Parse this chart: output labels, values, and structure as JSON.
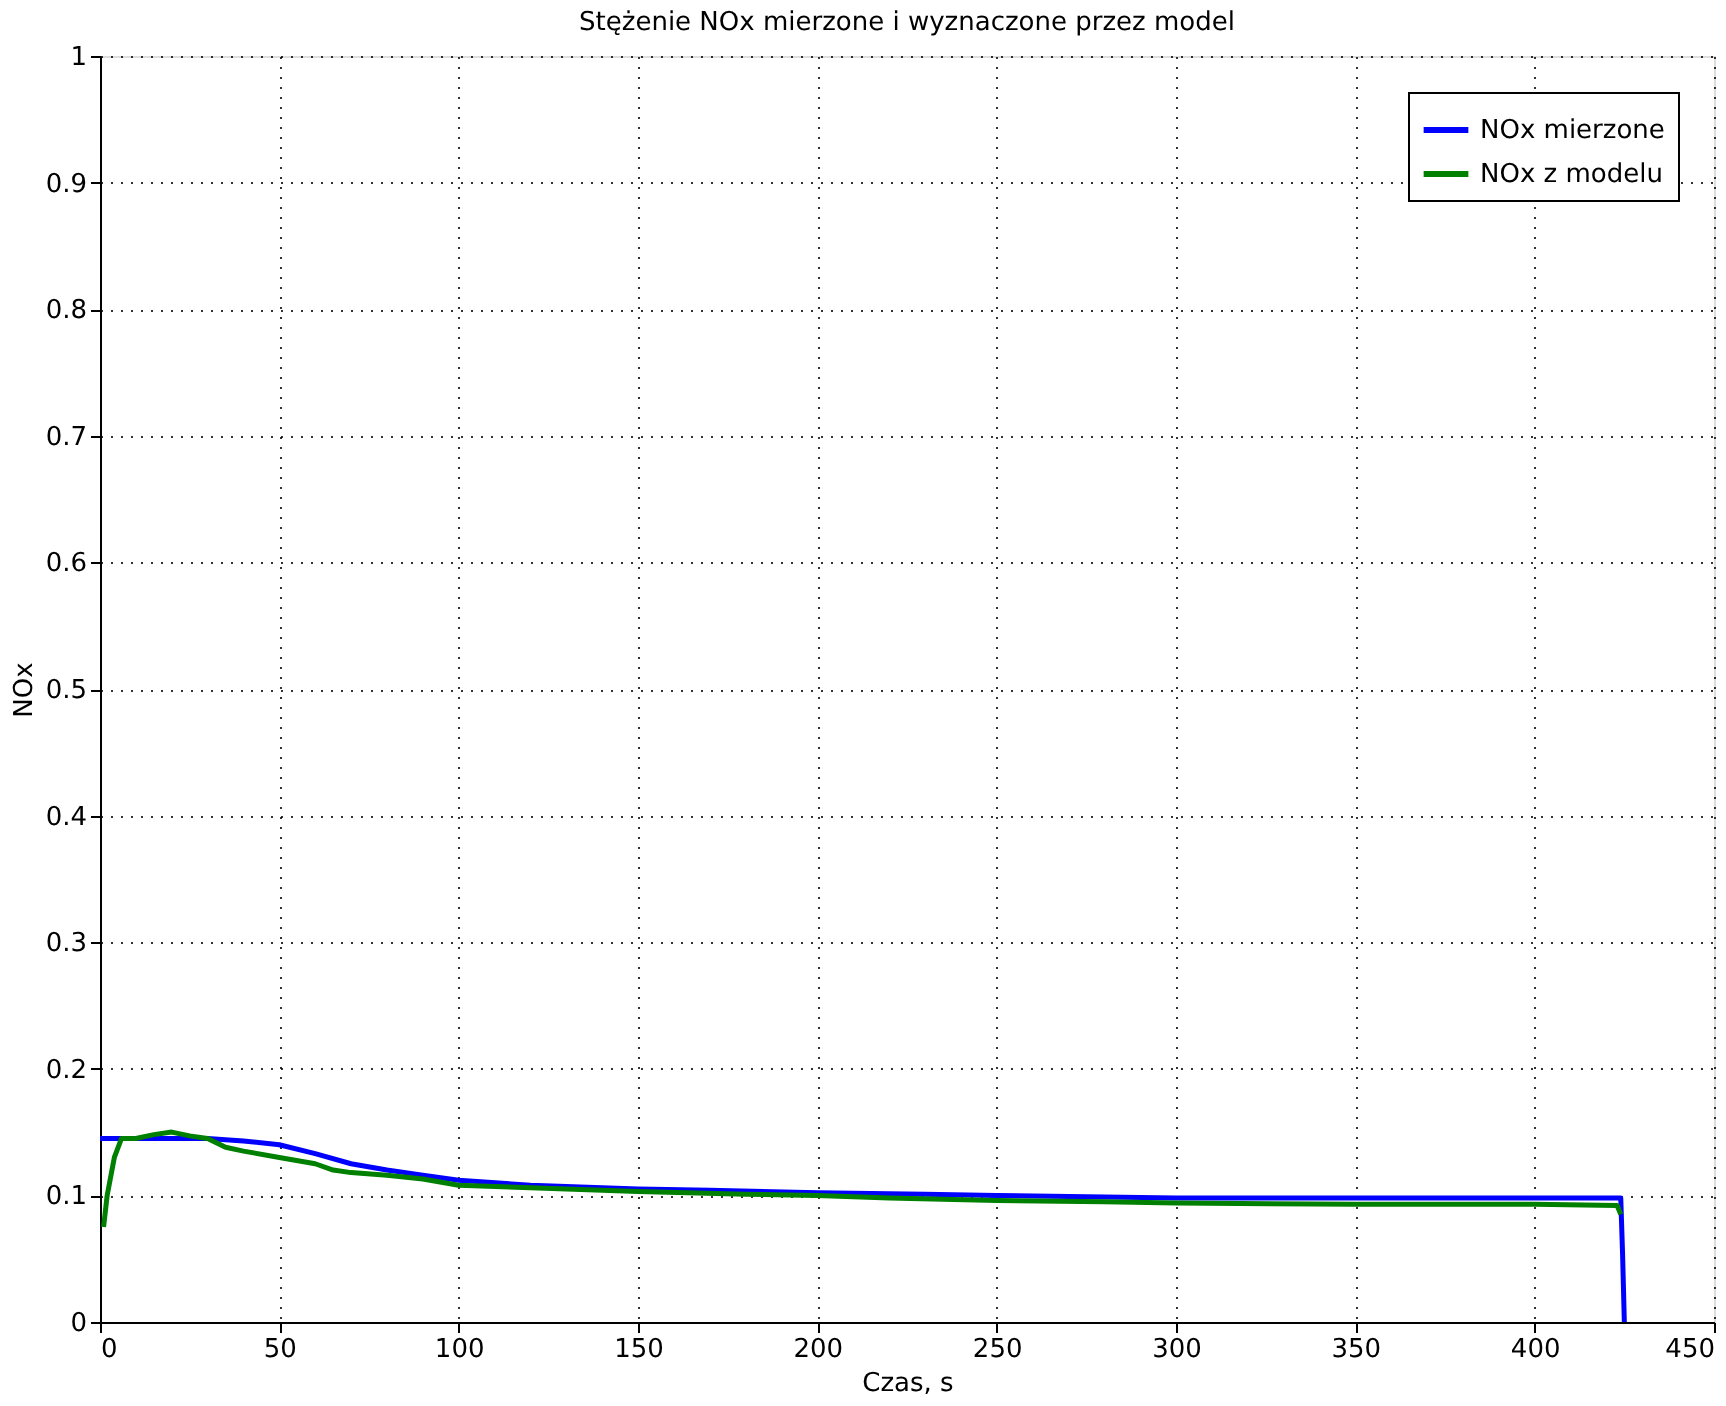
{
  "chart_data": {
    "type": "line",
    "title": "Stężenie NOx mierzone i wyznaczone przez model",
    "xlabel": "Czas, s",
    "ylabel": "NOx",
    "xlim": [
      0,
      450
    ],
    "ylim": [
      0,
      1
    ],
    "xticks": [
      0,
      50,
      100,
      150,
      200,
      250,
      300,
      350,
      400,
      450
    ],
    "yticks": [
      0,
      0.1,
      0.2,
      0.3,
      0.4,
      0.5,
      0.6,
      0.7,
      0.8,
      0.9,
      1
    ],
    "grid": true,
    "legend": "top right",
    "line_style": "solid",
    "marker": "none",
    "series": [
      {
        "name": "NOx mierzone",
        "color": "#0000ff",
        "x": [
          0,
          5,
          10,
          20,
          30,
          40,
          50,
          60,
          70,
          80,
          90,
          100,
          120,
          150,
          170,
          200,
          230,
          250,
          300,
          350,
          400,
          424,
          424.5,
          425
        ],
        "values": [
          0.145,
          0.145,
          0.145,
          0.145,
          0.145,
          0.143,
          0.14,
          0.133,
          0.125,
          0.12,
          0.116,
          0.112,
          0.108,
          0.105,
          0.104,
          0.102,
          0.101,
          0.1,
          0.098,
          0.098,
          0.098,
          0.098,
          0.055,
          0
        ]
      },
      {
        "name": "NOx z modelu",
        "color": "#008000",
        "x": [
          1,
          2,
          4,
          6,
          10,
          15,
          20,
          25,
          30,
          35,
          40,
          50,
          60,
          65,
          70,
          80,
          90,
          100,
          120,
          150,
          180,
          200,
          220,
          250,
          280,
          300,
          350,
          400,
          423,
          424
        ],
        "values": [
          0.075,
          0.1,
          0.13,
          0.145,
          0.145,
          0.148,
          0.15,
          0.147,
          0.145,
          0.138,
          0.135,
          0.13,
          0.125,
          0.12,
          0.118,
          0.116,
          0.113,
          0.108,
          0.106,
          0.103,
          0.101,
          0.1,
          0.098,
          0.096,
          0.095,
          0.094,
          0.093,
          0.093,
          0.092,
          0.085
        ]
      }
    ]
  }
}
